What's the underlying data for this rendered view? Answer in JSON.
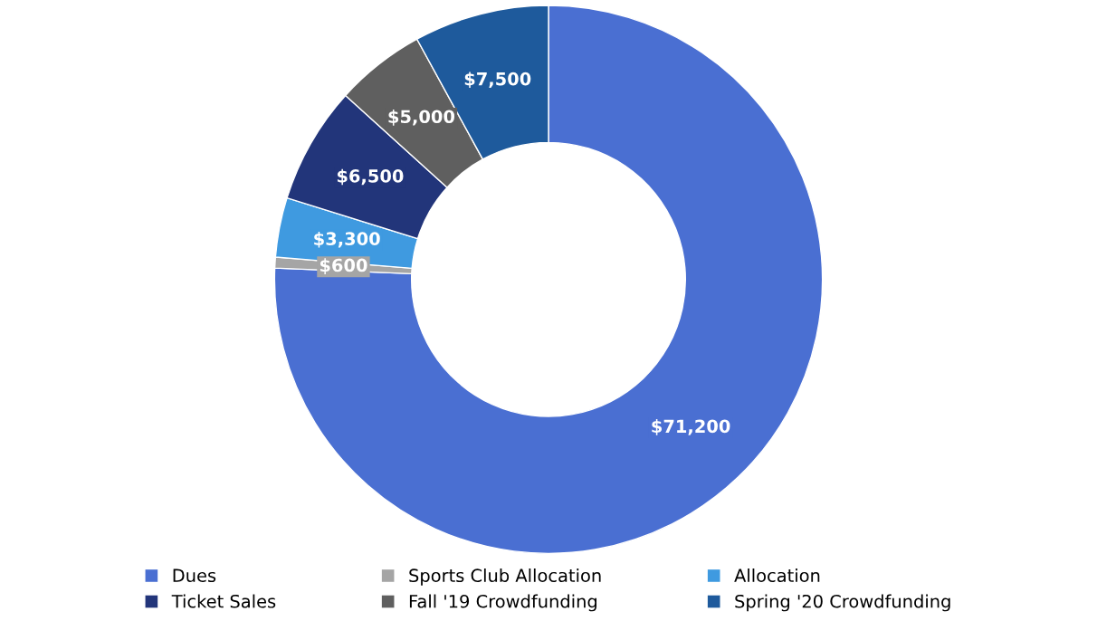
{
  "chart_data": {
    "type": "donut",
    "categories": [
      "Dues",
      "Sports Club Allocation",
      "Allocation",
      "Ticket Sales",
      "Fall '19 Crowdfunding",
      "Spring '20 Crowdfunding"
    ],
    "values": [
      71200,
      600,
      3300,
      6500,
      5000,
      7500
    ],
    "value_labels": [
      "$71,200",
      "$600",
      "$3,300",
      "$6,500",
      "$5,000",
      "$7,500"
    ],
    "colors": [
      "#4a6fd2",
      "#a5a5a5",
      "#3f9ae0",
      "#22357a",
      "#5f5f5f",
      "#1e5a9c"
    ],
    "legend": "bottom"
  }
}
